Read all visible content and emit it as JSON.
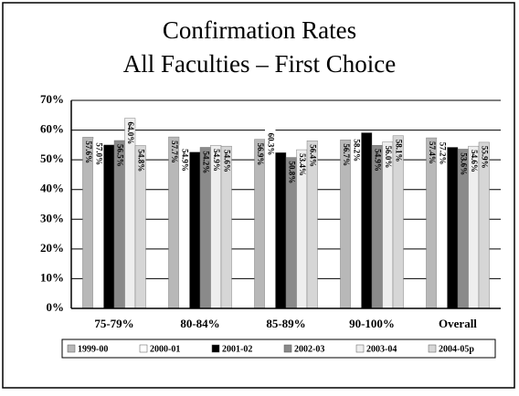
{
  "chart_data": {
    "type": "bar",
    "title": [
      "Confirmation Rates",
      "All Faculties – First Choice"
    ],
    "categories": [
      "75-79%",
      "80-84%",
      "85-89%",
      "90-100%",
      "Overall"
    ],
    "series": [
      {
        "name": "1999-00",
        "color": "#b8b8b8",
        "values": [
          57.6,
          57.7,
          56.9,
          56.7,
          57.4
        ],
        "value_labels": [
          "57.6%",
          "57.7%",
          "56.9%",
          "56.7%",
          "57.4%"
        ]
      },
      {
        "name": "2000-01",
        "color": "#ffffff",
        "values": [
          57.0,
          54.9,
          60.3,
          58.2,
          57.2
        ],
        "value_labels": [
          "57.0%",
          "54.9%",
          "60.3%",
          "58.2%",
          "57.2%"
        ]
      },
      {
        "name": "2001-02",
        "color": "#000000",
        "values": [
          55.0,
          52.6,
          52.4,
          59.1,
          54.2
        ],
        "value_labels": [
          "55.0%",
          "52.6%",
          "52.4%",
          "59.1%",
          "54.2%"
        ]
      },
      {
        "name": "2002-03",
        "color": "#8a8a8a",
        "values": [
          56.5,
          54.2,
          50.8,
          54.9,
          53.6
        ],
        "value_labels": [
          "56.5%",
          "54.2%",
          "50.8%",
          "54.9%",
          "53.6%"
        ]
      },
      {
        "name": "2003-04",
        "color": "#eeeeee",
        "values": [
          64.0,
          54.9,
          53.4,
          56.0,
          54.6
        ],
        "value_labels": [
          "64.0%",
          "54.9%",
          "53.4%",
          "56.0%",
          "54.6%"
        ]
      },
      {
        "name": "2004-05p",
        "color": "#d6d6d6",
        "values": [
          54.8,
          54.6,
          56.4,
          58.1,
          55.9
        ],
        "value_labels": [
          "54.8%",
          "54.6%",
          "56.4%",
          "58.1%",
          "55.9%"
        ]
      }
    ],
    "ylim": [
      0,
      70
    ],
    "yticks": [
      {
        "value": 0,
        "label": "0%"
      },
      {
        "value": 10,
        "label": "10%"
      },
      {
        "value": 20,
        "label": "20%"
      },
      {
        "value": 30,
        "label": "30%"
      },
      {
        "value": 40,
        "label": "40%"
      },
      {
        "value": 50,
        "label": "50%"
      },
      {
        "value": 60,
        "label": "60%"
      },
      {
        "value": 70,
        "label": "70%"
      }
    ],
    "grid": true,
    "legend": "bottom"
  }
}
